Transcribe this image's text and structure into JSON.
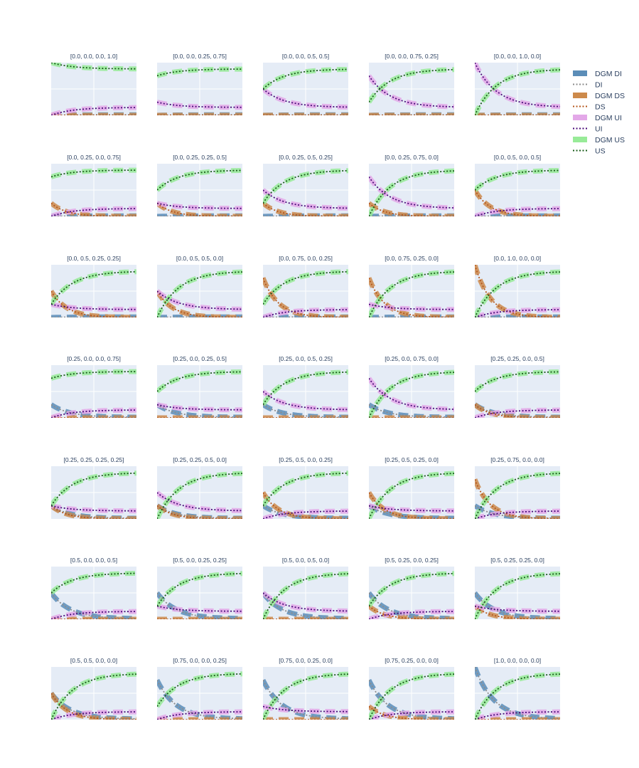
{
  "chart_data": {
    "type": "line",
    "grid": true,
    "legend_position": "top-right",
    "legend": [
      {
        "name": "DGM DI",
        "style": "band",
        "color": "#5b8db8"
      },
      {
        "name": "DI",
        "style": "dotted",
        "color": "#8c8c8c"
      },
      {
        "name": "DGM DS",
        "style": "band",
        "color": "#cd8a4b"
      },
      {
        "name": "DS",
        "style": "dotted",
        "color": "#b5571d"
      },
      {
        "name": "DGM UI",
        "style": "band",
        "color": "#e3a8e8"
      },
      {
        "name": "UI",
        "style": "dotted",
        "color": "#4b0d7a"
      },
      {
        "name": "DGM US",
        "style": "band",
        "color": "#98eb98"
      },
      {
        "name": "US",
        "style": "dotted",
        "color": "#1a5c1a"
      }
    ],
    "x_range": [
      0,
      1
    ],
    "y_range": [
      0,
      1
    ],
    "panels": [
      {
        "title": "[0.0, 0.0, 0.0, 1.0]",
        "initial": [
          0.0,
          0.0,
          0.0,
          1.0
        ]
      },
      {
        "title": "[0.0, 0.0, 0.25, 0.75]",
        "initial": [
          0.0,
          0.0,
          0.25,
          0.75
        ]
      },
      {
        "title": "[0.0, 0.0, 0.5, 0.5]",
        "initial": [
          0.0,
          0.0,
          0.5,
          0.5
        ]
      },
      {
        "title": "[0.0, 0.0, 0.75, 0.25]",
        "initial": [
          0.0,
          0.0,
          0.75,
          0.25
        ]
      },
      {
        "title": "[0.0, 0.0, 1.0, 0.0]",
        "initial": [
          0.0,
          0.0,
          1.0,
          0.0
        ]
      },
      {
        "title": "[0.0, 0.25, 0.0, 0.75]",
        "initial": [
          0.0,
          0.25,
          0.0,
          0.75
        ]
      },
      {
        "title": "[0.0, 0.25, 0.25, 0.5]",
        "initial": [
          0.0,
          0.25,
          0.25,
          0.5
        ]
      },
      {
        "title": "[0.0, 0.25, 0.5, 0.25]",
        "initial": [
          0.0,
          0.25,
          0.5,
          0.25
        ]
      },
      {
        "title": "[0.0, 0.25, 0.75, 0.0]",
        "initial": [
          0.0,
          0.25,
          0.75,
          0.0
        ]
      },
      {
        "title": "[0.0, 0.5, 0.0, 0.5]",
        "initial": [
          0.0,
          0.5,
          0.0,
          0.5
        ]
      },
      {
        "title": "[0.0, 0.5, 0.25, 0.25]",
        "initial": [
          0.0,
          0.5,
          0.25,
          0.25
        ]
      },
      {
        "title": "[0.0, 0.5, 0.5, 0.0]",
        "initial": [
          0.0,
          0.5,
          0.5,
          0.0
        ]
      },
      {
        "title": "[0.0, 0.75, 0.0, 0.25]",
        "initial": [
          0.0,
          0.75,
          0.0,
          0.25
        ]
      },
      {
        "title": "[0.0, 0.75, 0.25, 0.0]",
        "initial": [
          0.0,
          0.75,
          0.25,
          0.0
        ]
      },
      {
        "title": "[0.0, 1.0, 0.0, 0.0]",
        "initial": [
          0.0,
          1.0,
          0.0,
          0.0
        ]
      },
      {
        "title": "[0.25, 0.0, 0.0, 0.75]",
        "initial": [
          0.25,
          0.0,
          0.0,
          0.75
        ]
      },
      {
        "title": "[0.25, 0.0, 0.25, 0.5]",
        "initial": [
          0.25,
          0.0,
          0.25,
          0.5
        ]
      },
      {
        "title": "[0.25, 0.0, 0.5, 0.25]",
        "initial": [
          0.25,
          0.0,
          0.5,
          0.25
        ]
      },
      {
        "title": "[0.25, 0.0, 0.75, 0.0]",
        "initial": [
          0.25,
          0.0,
          0.75,
          0.0
        ]
      },
      {
        "title": "[0.25, 0.25, 0.0, 0.5]",
        "initial": [
          0.25,
          0.25,
          0.0,
          0.5
        ]
      },
      {
        "title": "[0.25, 0.25, 0.25, 0.25]",
        "initial": [
          0.25,
          0.25,
          0.25,
          0.25
        ]
      },
      {
        "title": "[0.25, 0.25, 0.5, 0.0]",
        "initial": [
          0.25,
          0.25,
          0.5,
          0.0
        ]
      },
      {
        "title": "[0.25, 0.5, 0.0, 0.25]",
        "initial": [
          0.25,
          0.5,
          0.0,
          0.25
        ]
      },
      {
        "title": "[0.25, 0.5, 0.25, 0.0]",
        "initial": [
          0.25,
          0.5,
          0.25,
          0.0
        ]
      },
      {
        "title": "[0.25, 0.75, 0.0, 0.0]",
        "initial": [
          0.25,
          0.75,
          0.0,
          0.0
        ]
      },
      {
        "title": "[0.5, 0.0, 0.0, 0.5]",
        "initial": [
          0.5,
          0.0,
          0.0,
          0.5
        ]
      },
      {
        "title": "[0.5, 0.0, 0.25, 0.25]",
        "initial": [
          0.5,
          0.0,
          0.25,
          0.25
        ]
      },
      {
        "title": "[0.5, 0.0, 0.5, 0.0]",
        "initial": [
          0.5,
          0.0,
          0.5,
          0.0
        ]
      },
      {
        "title": "[0.5, 0.25, 0.0, 0.25]",
        "initial": [
          0.5,
          0.25,
          0.0,
          0.25
        ]
      },
      {
        "title": "[0.5, 0.25, 0.25, 0.0]",
        "initial": [
          0.5,
          0.25,
          0.25,
          0.0
        ]
      },
      {
        "title": "[0.5, 0.5, 0.0, 0.0]",
        "initial": [
          0.5,
          0.5,
          0.0,
          0.0
        ]
      },
      {
        "title": "[0.75, 0.0, 0.0, 0.25]",
        "initial": [
          0.75,
          0.0,
          0.0,
          0.25
        ]
      },
      {
        "title": "[0.75, 0.0, 0.25, 0.0]",
        "initial": [
          0.75,
          0.0,
          0.25,
          0.0
        ]
      },
      {
        "title": "[0.75, 0.25, 0.0, 0.0]",
        "initial": [
          0.75,
          0.25,
          0.0,
          0.0
        ]
      },
      {
        "title": "[1.0, 0.0, 0.0, 0.0]",
        "initial": [
          1.0,
          0.0,
          0.0,
          0.0
        ]
      }
    ],
    "steady_state": {
      "DI": 0.01,
      "DS": 0.0,
      "UI": 0.15,
      "US": 0.88
    }
  }
}
